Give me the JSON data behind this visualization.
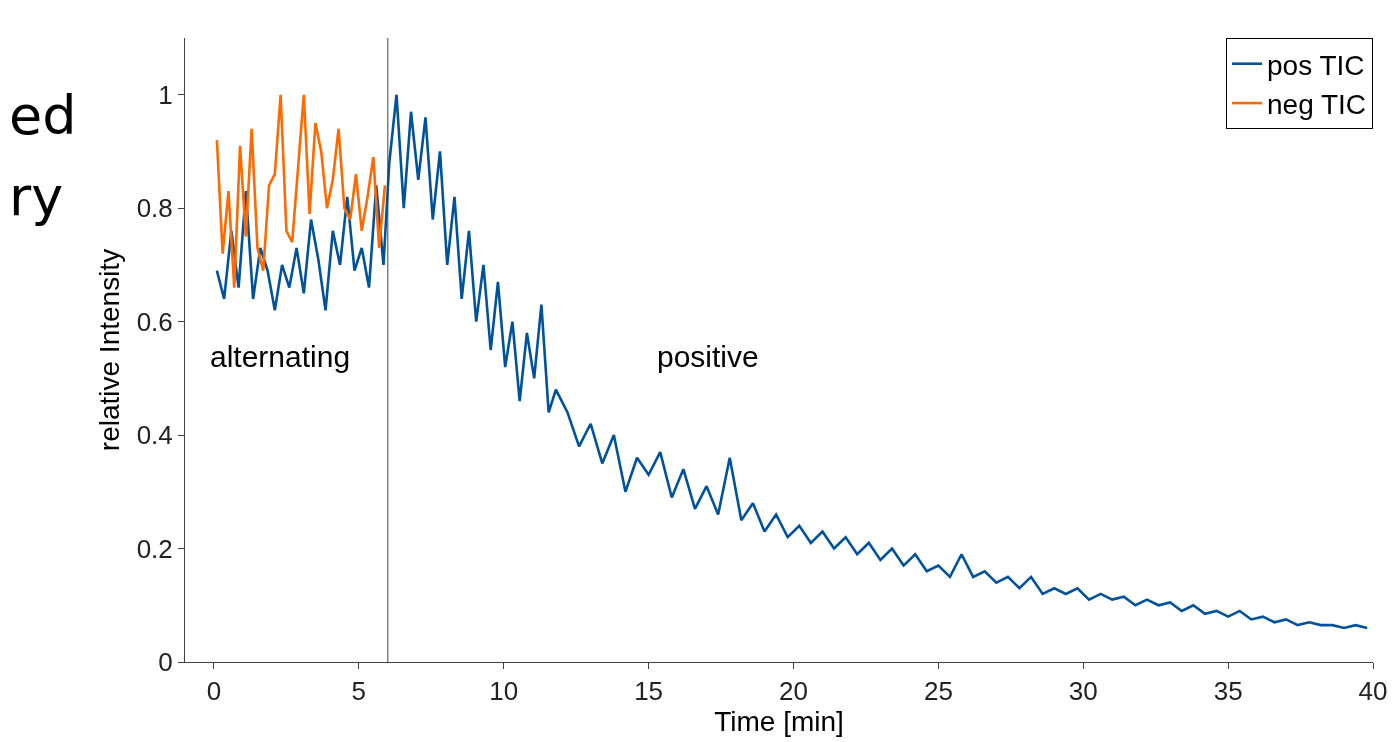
{
  "chart_data": {
    "type": "line",
    "xlabel": "Time [min]",
    "ylabel": "relative Intensity",
    "xlim": [
      -1,
      40
    ],
    "xticks": [
      0,
      5,
      10,
      15,
      20,
      25,
      30,
      35,
      40
    ],
    "ylim": [
      0,
      1.1
    ],
    "yticks": [
      0,
      0.2,
      0.4,
      0.6,
      0.8,
      1
    ],
    "legend": "top right",
    "marker": "none",
    "line_style": "solid",
    "series": [
      {
        "name": "pos TIC",
        "color": "#00529b",
        "x": [
          0.1,
          0.35,
          0.6,
          0.85,
          1.1,
          1.35,
          1.6,
          1.85,
          2.1,
          2.35,
          2.6,
          2.85,
          3.1,
          3.35,
          3.6,
          3.85,
          4.1,
          4.35,
          4.6,
          4.85,
          5.1,
          5.35,
          5.6,
          5.85,
          6.05,
          6.3,
          6.55,
          6.8,
          7.05,
          7.3,
          7.55,
          7.8,
          8.05,
          8.3,
          8.55,
          8.8,
          9.05,
          9.3,
          9.55,
          9.8,
          10.05,
          10.3,
          10.55,
          10.8,
          11.05,
          11.3,
          11.55,
          11.8,
          12.2,
          12.6,
          13.0,
          13.4,
          13.8,
          14.2,
          14.6,
          15.0,
          15.4,
          15.8,
          16.2,
          16.6,
          17.0,
          17.4,
          17.8,
          18.2,
          18.6,
          19.0,
          19.4,
          19.8,
          20.2,
          20.6,
          21.0,
          21.4,
          21.8,
          22.2,
          22.6,
          23.0,
          23.4,
          23.8,
          24.2,
          24.6,
          25.0,
          25.4,
          25.8,
          26.2,
          26.6,
          27.0,
          27.4,
          27.8,
          28.2,
          28.6,
          29.0,
          29.4,
          29.8,
          30.2,
          30.6,
          31.0,
          31.4,
          31.8,
          32.2,
          32.6,
          33.0,
          33.4,
          33.8,
          34.2,
          34.6,
          35.0,
          35.4,
          35.8,
          36.2,
          36.6,
          37.0,
          37.4,
          37.8,
          38.2,
          38.6,
          39.0,
          39.4,
          39.8
        ],
        "values": [
          0.69,
          0.64,
          0.76,
          0.66,
          0.83,
          0.64,
          0.73,
          0.69,
          0.62,
          0.7,
          0.66,
          0.73,
          0.65,
          0.78,
          0.71,
          0.62,
          0.76,
          0.7,
          0.82,
          0.69,
          0.73,
          0.66,
          0.84,
          0.7,
          0.88,
          1.0,
          0.8,
          0.97,
          0.85,
          0.96,
          0.78,
          0.9,
          0.7,
          0.82,
          0.64,
          0.76,
          0.6,
          0.7,
          0.55,
          0.67,
          0.52,
          0.6,
          0.46,
          0.58,
          0.5,
          0.63,
          0.44,
          0.48,
          0.44,
          0.38,
          0.42,
          0.35,
          0.4,
          0.3,
          0.36,
          0.33,
          0.37,
          0.29,
          0.34,
          0.27,
          0.31,
          0.26,
          0.36,
          0.25,
          0.28,
          0.23,
          0.26,
          0.22,
          0.24,
          0.21,
          0.23,
          0.2,
          0.22,
          0.19,
          0.21,
          0.18,
          0.2,
          0.17,
          0.19,
          0.16,
          0.17,
          0.15,
          0.19,
          0.15,
          0.16,
          0.14,
          0.15,
          0.13,
          0.15,
          0.12,
          0.13,
          0.12,
          0.13,
          0.11,
          0.12,
          0.11,
          0.115,
          0.1,
          0.11,
          0.1,
          0.105,
          0.09,
          0.1,
          0.085,
          0.09,
          0.08,
          0.09,
          0.075,
          0.08,
          0.07,
          0.075,
          0.065,
          0.07,
          0.065,
          0.065,
          0.06,
          0.065,
          0.06
        ]
      },
      {
        "name": "neg TIC",
        "color": "#ff6a00",
        "x": [
          0.1,
          0.3,
          0.5,
          0.7,
          0.9,
          1.1,
          1.3,
          1.5,
          1.7,
          1.9,
          2.1,
          2.3,
          2.5,
          2.7,
          2.9,
          3.1,
          3.3,
          3.5,
          3.7,
          3.9,
          4.1,
          4.3,
          4.5,
          4.7,
          4.9,
          5.1,
          5.3,
          5.5,
          5.7,
          5.9
        ],
        "values": [
          0.92,
          0.72,
          0.83,
          0.66,
          0.91,
          0.75,
          0.94,
          0.73,
          0.69,
          0.84,
          0.86,
          1.0,
          0.76,
          0.74,
          0.87,
          1.0,
          0.79,
          0.95,
          0.9,
          0.8,
          0.85,
          0.94,
          0.8,
          0.78,
          0.86,
          0.76,
          0.82,
          0.89,
          0.73,
          0.84
        ]
      }
    ],
    "ref_lines": [
      {
        "axis": "x",
        "value": 6,
        "color": "#404040"
      }
    ],
    "annotations": [
      "alternating",
      "positive",
      "ed",
      "ry"
    ]
  }
}
